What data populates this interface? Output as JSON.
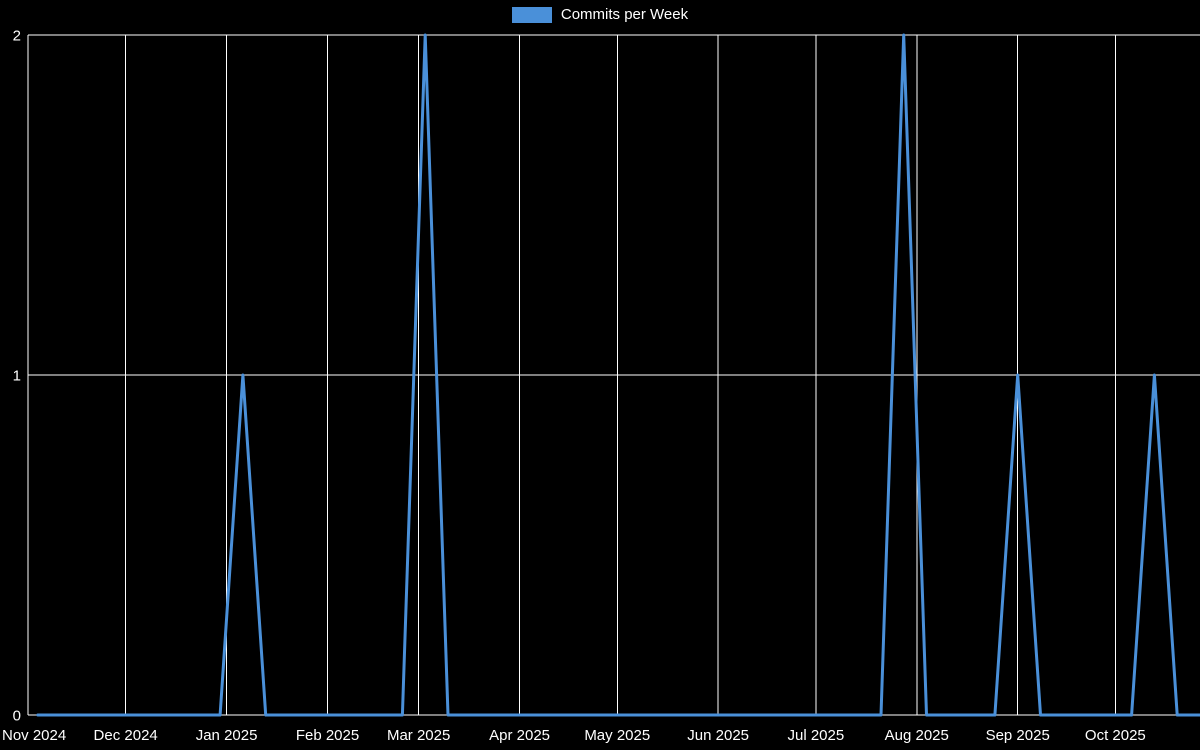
{
  "page": {
    "background": "#000000"
  },
  "chart_data": {
    "type": "line",
    "title": "Commits per Week",
    "legend": [
      {
        "label": "Commits per Week",
        "color": "#4a90d9"
      }
    ],
    "xlabel": "",
    "ylabel": "",
    "ylim": [
      0,
      2
    ],
    "yticks": [
      "0",
      "1",
      "2"
    ],
    "grid": true,
    "grid_color": "#ffffff",
    "axis_color": "#ffffff",
    "text_color": "#ffffff",
    "background": "#000000",
    "legend_position": "top-center",
    "x_range": {
      "start": "2024-11-01",
      "end": "2025-10-27"
    },
    "x_ticks": [
      {
        "label": "Nov 2024",
        "date": "2024-11-01"
      },
      {
        "label": "Dec 2024",
        "date": "2024-12-01"
      },
      {
        "label": "Jan 2025",
        "date": "2025-01-01"
      },
      {
        "label": "Feb 2025",
        "date": "2025-02-01"
      },
      {
        "label": "Mar 2025",
        "date": "2025-03-01"
      },
      {
        "label": "Apr 2025",
        "date": "2025-04-01"
      },
      {
        "label": "May 2025",
        "date": "2025-05-01"
      },
      {
        "label": "Jun 2025",
        "date": "2025-06-01"
      },
      {
        "label": "Jul 2025",
        "date": "2025-07-01"
      },
      {
        "label": "Aug 2025",
        "date": "2025-08-01"
      },
      {
        "label": "Sep 2025",
        "date": "2025-09-01"
      },
      {
        "label": "Oct 2025",
        "date": "2025-10-01"
      }
    ],
    "series": [
      {
        "name": "Commits per Week",
        "color": "#4a90d9",
        "line_width": 3,
        "weeks": [
          "2024-11-04",
          "2024-11-11",
          "2024-11-18",
          "2024-11-25",
          "2024-12-02",
          "2024-12-09",
          "2024-12-16",
          "2024-12-23",
          "2024-12-30",
          "2025-01-06",
          "2025-01-13",
          "2025-01-20",
          "2025-01-27",
          "2025-02-03",
          "2025-02-10",
          "2025-02-17",
          "2025-02-24",
          "2025-03-03",
          "2025-03-10",
          "2025-03-17",
          "2025-03-24",
          "2025-03-31",
          "2025-04-07",
          "2025-04-14",
          "2025-04-21",
          "2025-04-28",
          "2025-05-05",
          "2025-05-12",
          "2025-05-19",
          "2025-05-26",
          "2025-06-02",
          "2025-06-09",
          "2025-06-16",
          "2025-06-23",
          "2025-06-30",
          "2025-07-07",
          "2025-07-14",
          "2025-07-21",
          "2025-07-28",
          "2025-08-04",
          "2025-08-11",
          "2025-08-18",
          "2025-08-25",
          "2025-09-01",
          "2025-09-08",
          "2025-09-15",
          "2025-09-22",
          "2025-09-29",
          "2025-10-06",
          "2025-10-13",
          "2025-10-20",
          "2025-10-27"
        ],
        "values": [
          0,
          0,
          0,
          0,
          0,
          0,
          0,
          0,
          0,
          1,
          0,
          0,
          0,
          0,
          0,
          0,
          0,
          2,
          0,
          0,
          0,
          0,
          0,
          0,
          0,
          0,
          0,
          0,
          0,
          0,
          0,
          0,
          0,
          0,
          0,
          0,
          0,
          0,
          2,
          0,
          0,
          0,
          0,
          1,
          0,
          0,
          0,
          0,
          0,
          1,
          0,
          0
        ]
      }
    ]
  }
}
